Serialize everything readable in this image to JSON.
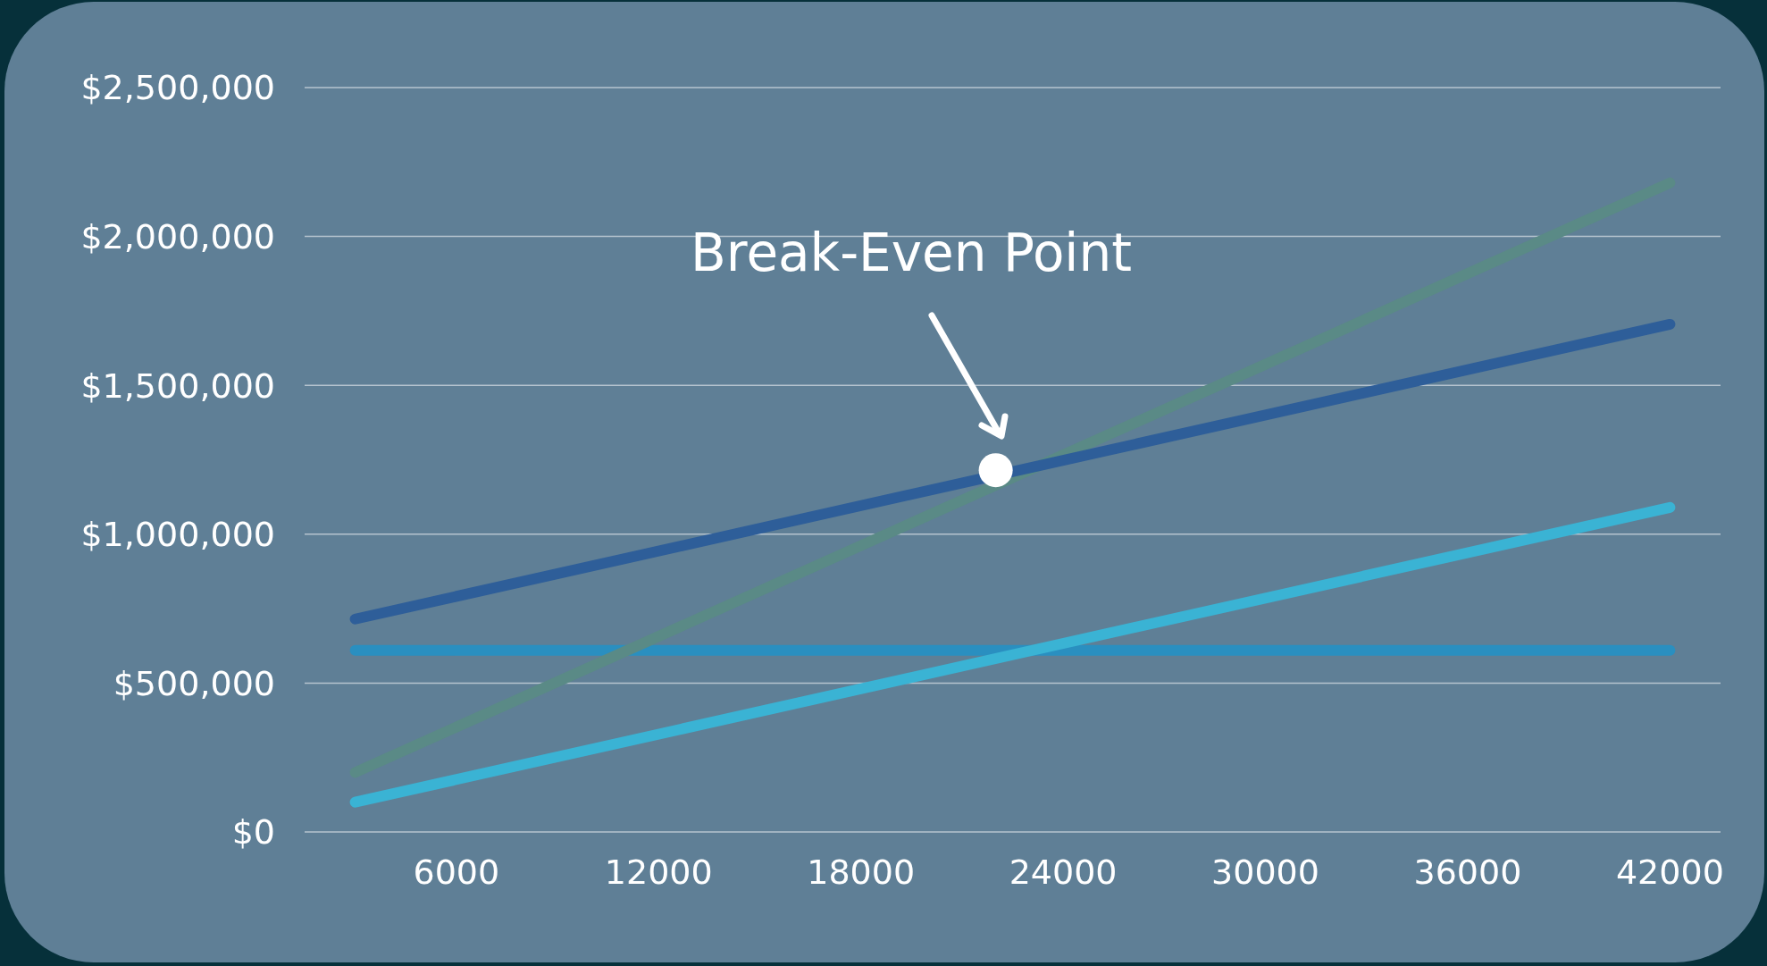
{
  "chart_data": {
    "type": "line",
    "xlim": [
      1500,
      43500
    ],
    "ylim": [
      0,
      2500000
    ],
    "xticks": [
      6000,
      12000,
      18000,
      24000,
      30000,
      36000,
      42000
    ],
    "yticks": [
      {
        "value": 0,
        "label": "$0"
      },
      {
        "value": 500000,
        "label": "$500,000"
      },
      {
        "value": 1000000,
        "label": "$1,000,000"
      },
      {
        "value": 1500000,
        "label": "$1,500,000"
      },
      {
        "value": 2000000,
        "label": "$2,000,000"
      },
      {
        "value": 2500000,
        "label": "$2,500,000"
      }
    ],
    "grid": "y",
    "line_style": "solid",
    "series": [
      {
        "color": "#2a8fc0",
        "x": [
          3000,
          42000
        ],
        "values": [
          610000,
          610000
        ]
      },
      {
        "color": "#3ab3d4",
        "x": [
          3000,
          42000
        ],
        "values": [
          100000,
          1090000
        ]
      },
      {
        "color": "#5a8a86",
        "x": [
          3000,
          42000
        ],
        "values": [
          200000,
          2180000
        ]
      },
      {
        "color": "#2e5e99",
        "x": [
          3000,
          42000
        ],
        "values": [
          715000,
          1705000
        ]
      },
      {
        "type": "scatter",
        "marker": "circle",
        "color": "#ffffff",
        "x": [
          22000
        ],
        "values": [
          1215000
        ]
      }
    ],
    "annotations": [
      "Break-Even Point"
    ]
  }
}
